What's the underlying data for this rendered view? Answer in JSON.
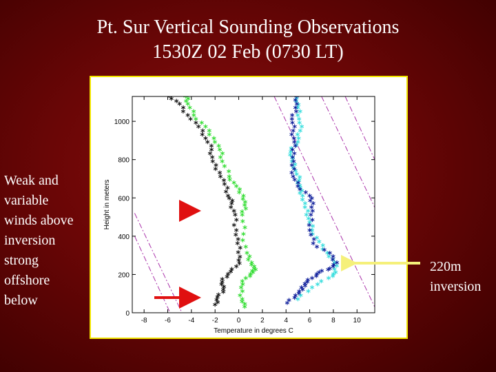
{
  "slide": {
    "title_line1": "Pt. Sur Vertical Sounding Observations",
    "title_line2": "1530Z 02 Feb (0730 LT)",
    "left_note": [
      "Weak and",
      "variable",
      "winds above",
      "inversion",
      "strong",
      "offshore",
      "below"
    ],
    "right_note": [
      "220m",
      "inversion"
    ],
    "colors": {
      "background": "#6a0606",
      "frame_border": "#f2e600",
      "arrow_red": "#e01010",
      "arrow_yellow": "#f5f07a"
    }
  },
  "chart_data": {
    "type": "scatter",
    "xlabel": "Temperature in degrees C",
    "ylabel": "Height in meters",
    "xlim": [
      -9,
      11.5
    ],
    "ylim": [
      0,
      1130
    ],
    "xticks": [
      -8,
      -6,
      -4,
      -2,
      0,
      2,
      4,
      6,
      8,
      10
    ],
    "xtick_labels": [
      "-8",
      "-6",
      "-4",
      "-2",
      "0",
      "2",
      "4",
      "6",
      "8",
      "10"
    ],
    "yticks": [
      0,
      200,
      400,
      600,
      800,
      1000
    ],
    "ytick_labels": [
      "0",
      "200",
      "400",
      "600",
      "800",
      "1000"
    ],
    "grid": false,
    "series": [
      {
        "marker": "*",
        "color": "#33dd33",
        "points": [
          [
            0.5,
            20
          ],
          [
            0.3,
            60
          ],
          [
            0.2,
            120
          ],
          [
            0.6,
            170
          ],
          [
            1.2,
            200
          ],
          [
            1.3,
            220
          ],
          [
            1.1,
            250
          ],
          [
            0.7,
            300
          ],
          [
            0.4,
            400
          ],
          [
            0.3,
            500
          ],
          [
            0.5,
            550
          ],
          [
            0.4,
            600
          ],
          [
            -0.2,
            650
          ],
          [
            -0.8,
            700
          ],
          [
            -1.4,
            780
          ],
          [
            -1.6,
            840
          ],
          [
            -2.1,
            900
          ],
          [
            -2.8,
            960
          ],
          [
            -3.8,
            1020
          ],
          [
            -4.3,
            1080
          ],
          [
            -4.5,
            1120
          ]
        ]
      },
      {
        "marker": "*",
        "color": "#111111",
        "points": [
          [
            -2.0,
            30
          ],
          [
            -1.8,
            70
          ],
          [
            -1.3,
            110
          ],
          [
            -1.4,
            150
          ],
          [
            -0.9,
            190
          ],
          [
            -0.2,
            230
          ],
          [
            0.1,
            280
          ],
          [
            -0.1,
            350
          ],
          [
            -0.2,
            420
          ],
          [
            -0.3,
            500
          ],
          [
            -0.6,
            560
          ],
          [
            -0.9,
            600
          ],
          [
            -1.2,
            660
          ],
          [
            -1.6,
            720
          ],
          [
            -2.2,
            780
          ],
          [
            -2.3,
            840
          ],
          [
            -2.8,
            900
          ],
          [
            -3.4,
            960
          ],
          [
            -4.3,
            1020
          ],
          [
            -5.0,
            1080
          ],
          [
            -5.8,
            1120
          ]
        ]
      },
      {
        "marker": "*",
        "color": "#33dddd",
        "points": [
          [
            5.0,
            60
          ],
          [
            6.2,
            120
          ],
          [
            7.6,
            170
          ],
          [
            8.2,
            200
          ],
          [
            8.1,
            250
          ],
          [
            7.5,
            300
          ],
          [
            6.8,
            360
          ],
          [
            6.2,
            420
          ],
          [
            5.9,
            480
          ],
          [
            5.6,
            540
          ],
          [
            5.4,
            600
          ],
          [
            5.2,
            640
          ],
          [
            5.1,
            680
          ],
          [
            4.8,
            730
          ],
          [
            4.5,
            780
          ],
          [
            4.4,
            830
          ],
          [
            5.0,
            880
          ],
          [
            5.2,
            940
          ],
          [
            5.1,
            1000
          ],
          [
            5.0,
            1060
          ],
          [
            4.9,
            1110
          ]
        ]
      },
      {
        "marker": "*",
        "color": "#0a1a99",
        "points": [
          [
            4.1,
            40
          ],
          [
            4.8,
            80
          ],
          [
            5.4,
            110
          ],
          [
            5.6,
            140
          ],
          [
            6.2,
            170
          ],
          [
            6.8,
            200
          ],
          [
            7.7,
            220
          ],
          [
            8.3,
            250
          ],
          [
            7.7,
            300
          ],
          [
            6.3,
            350
          ],
          [
            6.0,
            420
          ],
          [
            6.1,
            500
          ],
          [
            6.3,
            560
          ],
          [
            6.0,
            600
          ],
          [
            5.0,
            650
          ],
          [
            4.6,
            700
          ],
          [
            4.5,
            760
          ],
          [
            4.7,
            820
          ],
          [
            4.7,
            880
          ],
          [
            4.6,
            940
          ],
          [
            4.5,
            1000
          ],
          [
            4.8,
            1060
          ],
          [
            4.9,
            1120
          ]
        ]
      }
    ],
    "reference_lines": [
      {
        "style": "dashdot",
        "color": "#aa33aa",
        "points": [
          [
            -8.8,
            520
          ],
          [
            -4.8,
            0
          ]
        ]
      },
      {
        "style": "dashdot",
        "color": "#aa33aa",
        "points": [
          [
            -8.8,
            400
          ],
          [
            -5.8,
            0
          ]
        ]
      },
      {
        "style": "dashdot",
        "color": "#aa33aa",
        "points": [
          [
            3.0,
            1130
          ],
          [
            11.5,
            30
          ]
        ]
      },
      {
        "style": "dashdot",
        "color": "#aa33aa",
        "points": [
          [
            7.0,
            1130
          ],
          [
            11.5,
            550
          ]
        ]
      },
      {
        "style": "dashdot",
        "color": "#aa33aa",
        "points": [
          [
            9.0,
            1130
          ],
          [
            11.5,
            800
          ]
        ]
      }
    ]
  }
}
